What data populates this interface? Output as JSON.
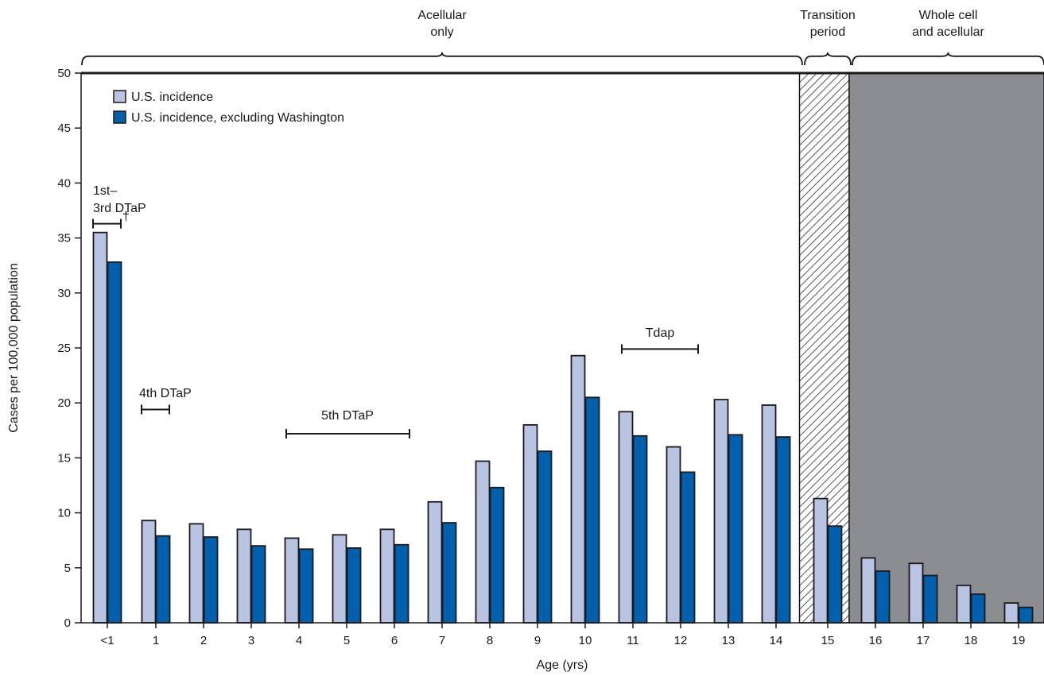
{
  "chart_data": {
    "type": "bar",
    "title": "",
    "xlabel": "Age (yrs)",
    "ylabel": "Cases per 100,000 population",
    "ylim": [
      0,
      50
    ],
    "yticks": [
      0,
      5,
      10,
      15,
      20,
      25,
      30,
      35,
      40,
      45,
      50
    ],
    "categories": [
      "<1",
      "1",
      "2",
      "3",
      "4",
      "5",
      "6",
      "7",
      "8",
      "9",
      "10",
      "11",
      "12",
      "13",
      "14",
      "15",
      "16",
      "17",
      "18",
      "19"
    ],
    "series": [
      {
        "name": "U.S. incidence",
        "color": "#b9c3e2",
        "values": [
          35.5,
          9.3,
          9.0,
          8.5,
          7.7,
          8.0,
          8.5,
          11.0,
          14.7,
          18.0,
          24.3,
          19.2,
          16.0,
          20.3,
          19.8,
          11.3,
          5.9,
          5.4,
          3.4,
          1.8
        ]
      },
      {
        "name": "U.S. incidence, excluding Washington",
        "color": "#0060ae",
        "values": [
          32.8,
          7.9,
          7.8,
          7.0,
          6.7,
          6.8,
          7.1,
          9.1,
          12.3,
          15.6,
          20.5,
          17.0,
          13.7,
          17.1,
          16.9,
          8.8,
          4.7,
          4.3,
          2.6,
          1.4
        ]
      }
    ],
    "legend_position": "top-left",
    "periods": [
      {
        "label_lines": [
          "Acellular",
          "only"
        ],
        "from": "<1",
        "to": "14",
        "fill": "none"
      },
      {
        "label_lines": [
          "Transition",
          "period"
        ],
        "from": "15",
        "to": "15",
        "fill": "hatched"
      },
      {
        "label_lines": [
          "Whole cell",
          "and acellular"
        ],
        "from": "16",
        "to": "19",
        "fill": "#8c8d90"
      }
    ],
    "annotations": [
      {
        "lines": [
          "1st–",
          "3rd DTaP"
        ],
        "marker": "†",
        "y": 36.3
      },
      {
        "lines": [
          "4th DTaP"
        ],
        "y": 19.4
      },
      {
        "lines": [
          "5th DTaP"
        ],
        "y": 17.2
      },
      {
        "lines": [
          "Tdap"
        ],
        "y": 24.9
      }
    ]
  }
}
